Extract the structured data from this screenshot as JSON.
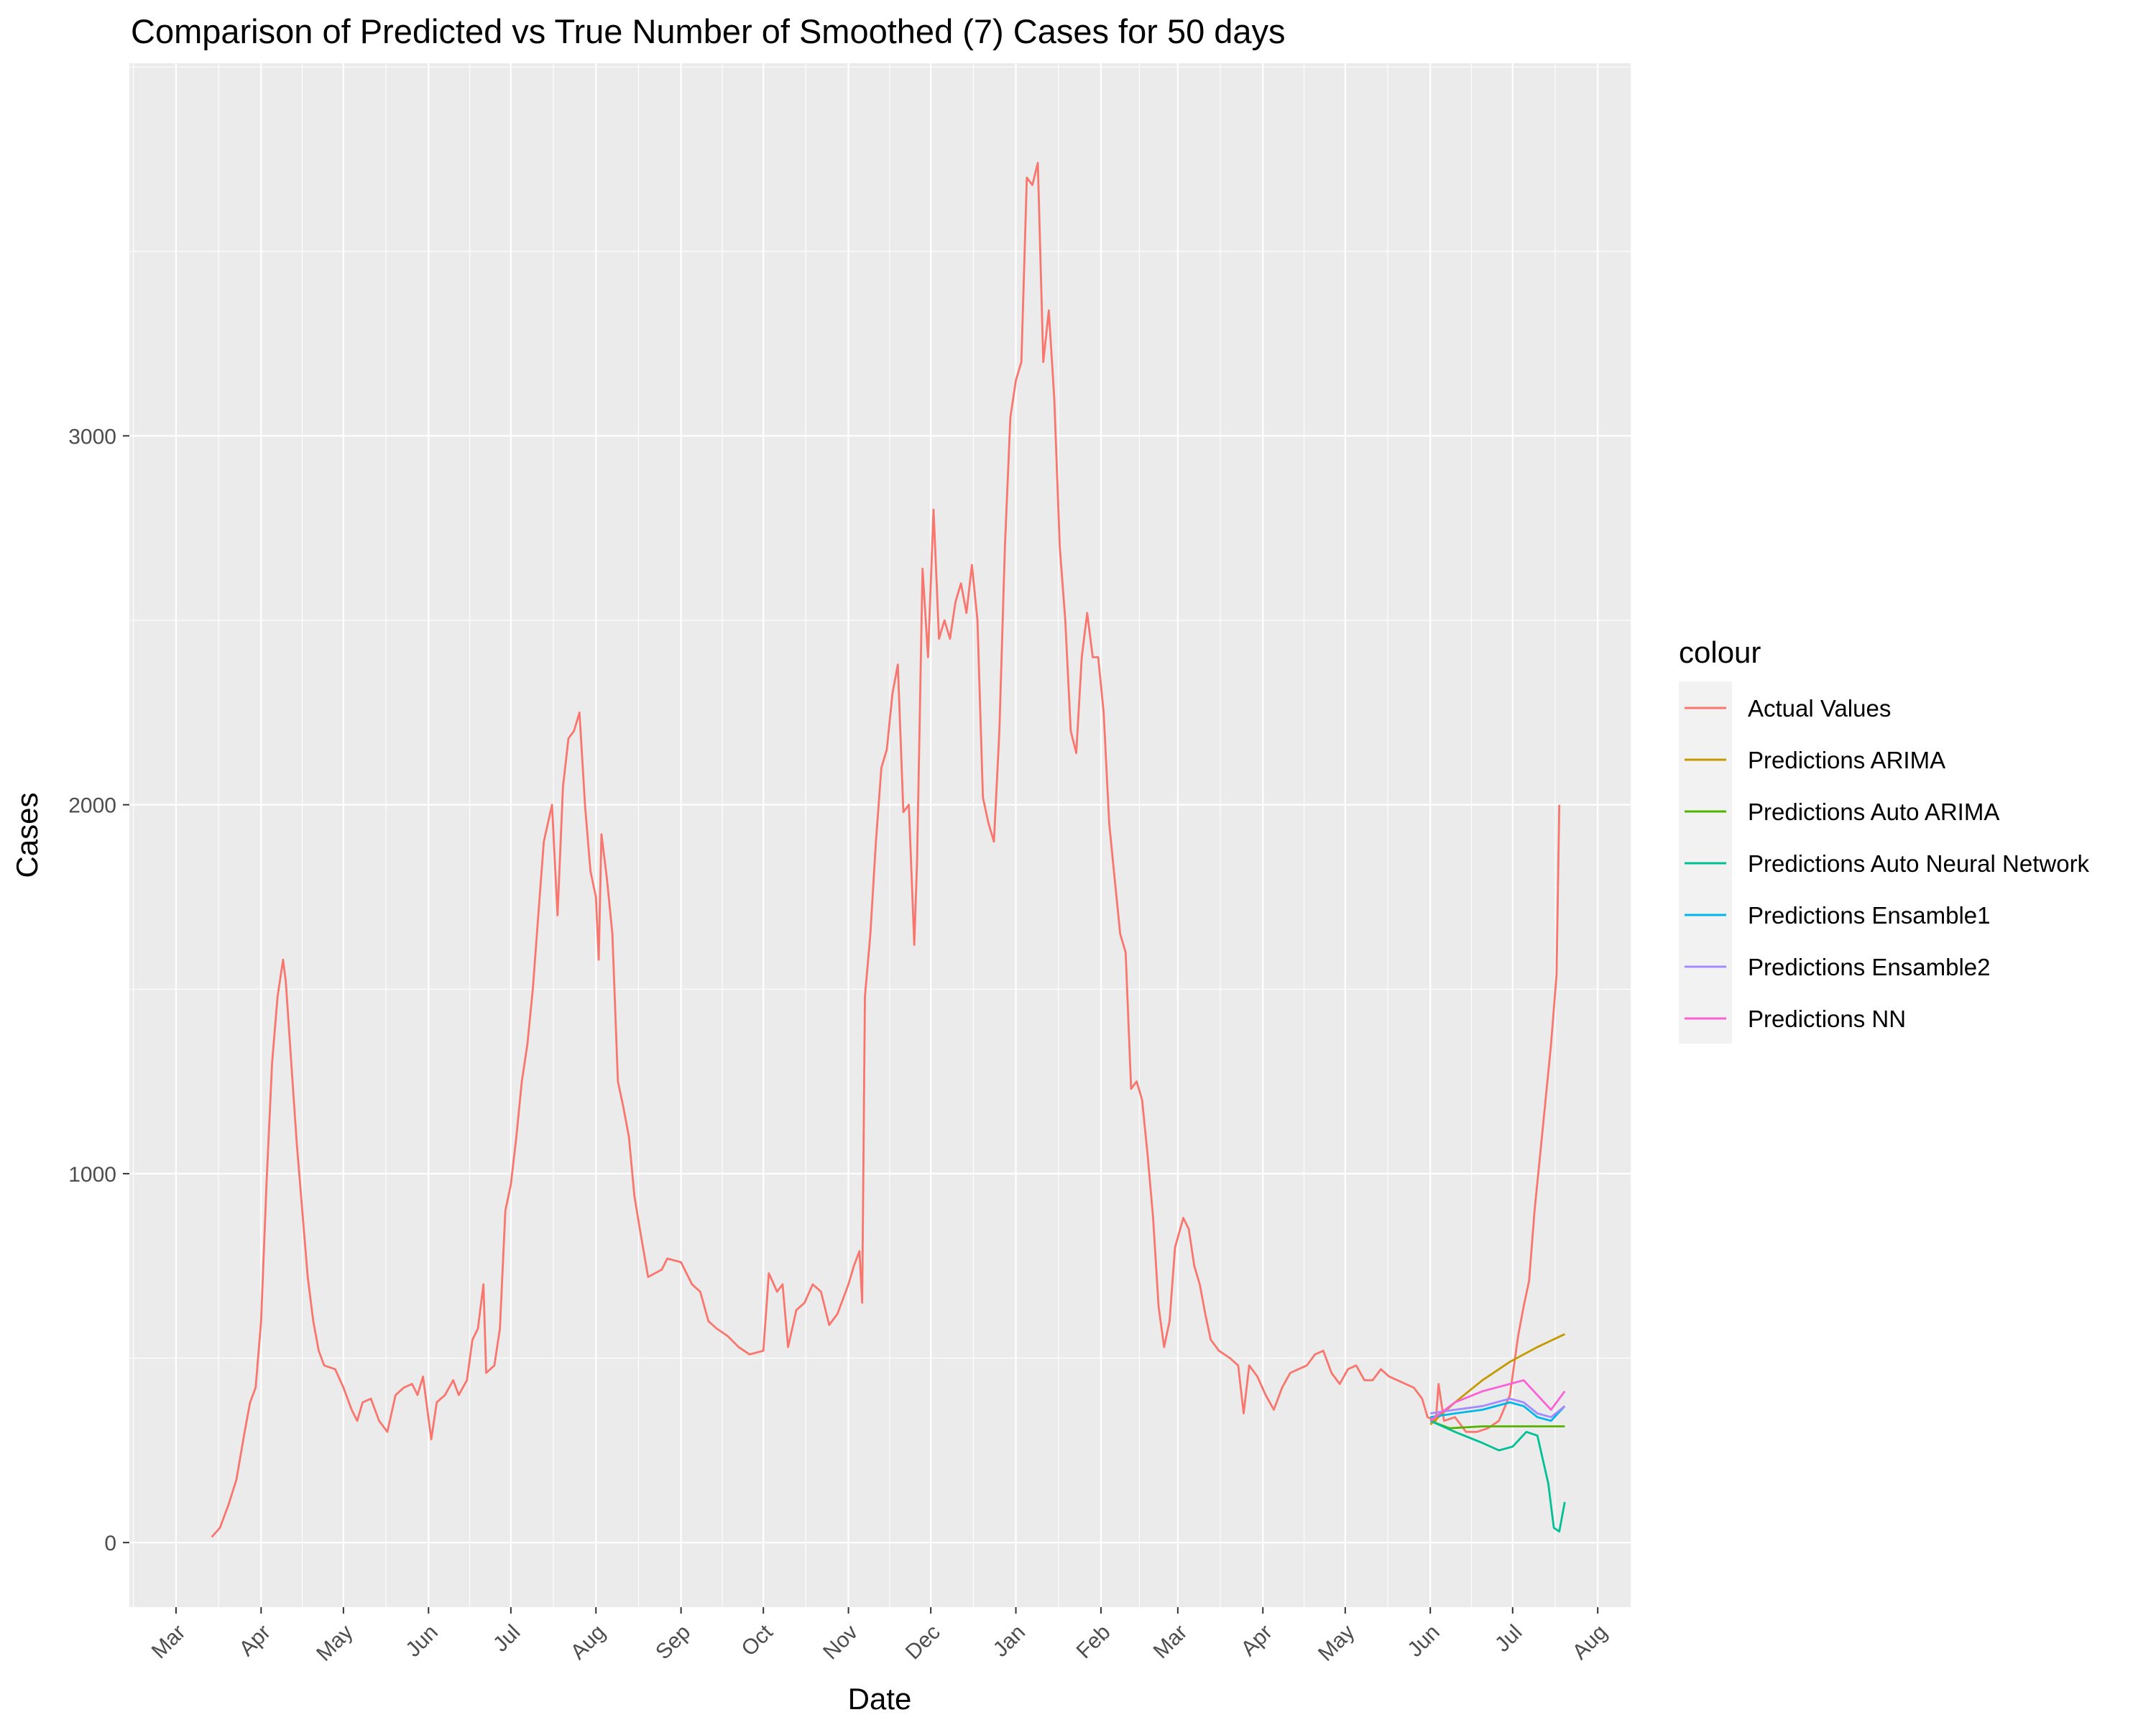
{
  "chart_data": {
    "type": "line",
    "title": "Comparison of Predicted vs True Number of Smoothed (7) Cases for 50 days",
    "xlabel": "Date",
    "ylabel": "Cases",
    "x_type": "date",
    "xlim": [
      "2020-02-13",
      "2021-08-13"
    ],
    "ylim": [
      -175,
      4010
    ],
    "x_ticks": [
      {
        "date": "2020-03-01",
        "label": "Mar"
      },
      {
        "date": "2020-04-01",
        "label": "Apr"
      },
      {
        "date": "2020-05-01",
        "label": "May"
      },
      {
        "date": "2020-06-01",
        "label": "Jun"
      },
      {
        "date": "2020-07-01",
        "label": "Jul"
      },
      {
        "date": "2020-08-01",
        "label": "Aug"
      },
      {
        "date": "2020-09-01",
        "label": "Sep"
      },
      {
        "date": "2020-10-01",
        "label": "Oct"
      },
      {
        "date": "2020-11-01",
        "label": "Nov"
      },
      {
        "date": "2020-12-01",
        "label": "Dec"
      },
      {
        "date": "2021-01-01",
        "label": "Jan"
      },
      {
        "date": "2021-02-01",
        "label": "Feb"
      },
      {
        "date": "2021-03-01",
        "label": "Mar"
      },
      {
        "date": "2021-04-01",
        "label": "Apr"
      },
      {
        "date": "2021-05-01",
        "label": "May"
      },
      {
        "date": "2021-06-01",
        "label": "Jun"
      },
      {
        "date": "2021-07-01",
        "label": "Jul"
      },
      {
        "date": "2021-08-01",
        "label": "Aug"
      }
    ],
    "y_ticks": [
      0,
      1000,
      2000,
      3000
    ],
    "grid": true,
    "legend": {
      "title": "colour",
      "position": "right"
    },
    "series": [
      {
        "name": "Actual Values",
        "color": "#F8766D",
        "points": [
          [
            "2020-03-14",
            15
          ],
          [
            "2020-03-17",
            40
          ],
          [
            "2020-03-20",
            100
          ],
          [
            "2020-03-23",
            170
          ],
          [
            "2020-03-26",
            300
          ],
          [
            "2020-03-28",
            380
          ],
          [
            "2020-03-30",
            420
          ],
          [
            "2020-04-01",
            600
          ],
          [
            "2020-04-03",
            980
          ],
          [
            "2020-04-05",
            1300
          ],
          [
            "2020-04-07",
            1480
          ],
          [
            "2020-04-09",
            1580
          ],
          [
            "2020-04-10",
            1520
          ],
          [
            "2020-04-12",
            1300
          ],
          [
            "2020-04-14",
            1080
          ],
          [
            "2020-04-16",
            900
          ],
          [
            "2020-04-18",
            720
          ],
          [
            "2020-04-20",
            600
          ],
          [
            "2020-04-22",
            520
          ],
          [
            "2020-04-24",
            480
          ],
          [
            "2020-04-28",
            470
          ],
          [
            "2020-05-01",
            420
          ],
          [
            "2020-05-04",
            360
          ],
          [
            "2020-05-06",
            330
          ],
          [
            "2020-05-08",
            380
          ],
          [
            "2020-05-11",
            390
          ],
          [
            "2020-05-14",
            330
          ],
          [
            "2020-05-17",
            300
          ],
          [
            "2020-05-20",
            400
          ],
          [
            "2020-05-23",
            420
          ],
          [
            "2020-05-26",
            430
          ],
          [
            "2020-05-28",
            400
          ],
          [
            "2020-05-30",
            450
          ],
          [
            "2020-06-02",
            280
          ],
          [
            "2020-06-04",
            380
          ],
          [
            "2020-06-07",
            400
          ],
          [
            "2020-06-10",
            440
          ],
          [
            "2020-06-12",
            400
          ],
          [
            "2020-06-15",
            440
          ],
          [
            "2020-06-17",
            550
          ],
          [
            "2020-06-19",
            580
          ],
          [
            "2020-06-21",
            700
          ],
          [
            "2020-06-22",
            460
          ],
          [
            "2020-06-25",
            480
          ],
          [
            "2020-06-27",
            580
          ],
          [
            "2020-06-29",
            900
          ],
          [
            "2020-07-01",
            970
          ],
          [
            "2020-07-03",
            1100
          ],
          [
            "2020-07-05",
            1250
          ],
          [
            "2020-07-07",
            1350
          ],
          [
            "2020-07-09",
            1500
          ],
          [
            "2020-07-11",
            1700
          ],
          [
            "2020-07-13",
            1900
          ],
          [
            "2020-07-16",
            2000
          ],
          [
            "2020-07-18",
            1700
          ],
          [
            "2020-07-20",
            2050
          ],
          [
            "2020-07-22",
            2180
          ],
          [
            "2020-07-24",
            2200
          ],
          [
            "2020-07-26",
            2250
          ],
          [
            "2020-07-28",
            2000
          ],
          [
            "2020-07-30",
            1820
          ],
          [
            "2020-08-01",
            1750
          ],
          [
            "2020-08-02",
            1580
          ],
          [
            "2020-08-03",
            1920
          ],
          [
            "2020-08-05",
            1800
          ],
          [
            "2020-08-07",
            1650
          ],
          [
            "2020-08-09",
            1250
          ],
          [
            "2020-08-11",
            1180
          ],
          [
            "2020-08-13",
            1100
          ],
          [
            "2020-08-15",
            940
          ],
          [
            "2020-08-17",
            850
          ],
          [
            "2020-08-20",
            720
          ],
          [
            "2020-08-25",
            740
          ],
          [
            "2020-08-27",
            770
          ],
          [
            "2020-09-01",
            760
          ],
          [
            "2020-09-05",
            700
          ],
          [
            "2020-09-08",
            680
          ],
          [
            "2020-09-11",
            600
          ],
          [
            "2020-09-14",
            580
          ],
          [
            "2020-09-18",
            560
          ],
          [
            "2020-09-22",
            530
          ],
          [
            "2020-09-26",
            510
          ],
          [
            "2020-10-01",
            520
          ],
          [
            "2020-10-03",
            730
          ],
          [
            "2020-10-06",
            680
          ],
          [
            "2020-10-08",
            700
          ],
          [
            "2020-10-10",
            530
          ],
          [
            "2020-10-13",
            630
          ],
          [
            "2020-10-16",
            650
          ],
          [
            "2020-10-19",
            700
          ],
          [
            "2020-10-22",
            680
          ],
          [
            "2020-10-25",
            590
          ],
          [
            "2020-10-28",
            620
          ],
          [
            "2020-11-01",
            700
          ],
          [
            "2020-11-03",
            750
          ],
          [
            "2020-11-05",
            790
          ],
          [
            "2020-11-06",
            650
          ],
          [
            "2020-11-07",
            1480
          ],
          [
            "2020-11-09",
            1650
          ],
          [
            "2020-11-11",
            1900
          ],
          [
            "2020-11-13",
            2100
          ],
          [
            "2020-11-15",
            2150
          ],
          [
            "2020-11-17",
            2300
          ],
          [
            "2020-11-19",
            2380
          ],
          [
            "2020-11-21",
            1980
          ],
          [
            "2020-11-23",
            2000
          ],
          [
            "2020-11-25",
            1620
          ],
          [
            "2020-11-26",
            1850
          ],
          [
            "2020-11-28",
            2640
          ],
          [
            "2020-11-30",
            2400
          ],
          [
            "2020-12-02",
            2800
          ],
          [
            "2020-12-04",
            2450
          ],
          [
            "2020-12-06",
            2500
          ],
          [
            "2020-12-08",
            2450
          ],
          [
            "2020-12-10",
            2550
          ],
          [
            "2020-12-12",
            2600
          ],
          [
            "2020-12-14",
            2520
          ],
          [
            "2020-12-16",
            2650
          ],
          [
            "2020-12-18",
            2500
          ],
          [
            "2020-12-20",
            2020
          ],
          [
            "2020-12-22",
            1950
          ],
          [
            "2020-12-24",
            1900
          ],
          [
            "2020-12-26",
            2200
          ],
          [
            "2020-12-28",
            2700
          ],
          [
            "2020-12-30",
            3050
          ],
          [
            "2021-01-01",
            3150
          ],
          [
            "2021-01-03",
            3200
          ],
          [
            "2021-01-05",
            3700
          ],
          [
            "2021-01-07",
            3680
          ],
          [
            "2021-01-09",
            3740
          ],
          [
            "2021-01-11",
            3200
          ],
          [
            "2021-01-13",
            3340
          ],
          [
            "2021-01-15",
            3100
          ],
          [
            "2021-01-17",
            2700
          ],
          [
            "2021-01-19",
            2500
          ],
          [
            "2021-01-21",
            2200
          ],
          [
            "2021-01-23",
            2140
          ],
          [
            "2021-01-25",
            2400
          ],
          [
            "2021-01-27",
            2520
          ],
          [
            "2021-01-29",
            2400
          ],
          [
            "2021-01-31",
            2400
          ],
          [
            "2021-02-02",
            2250
          ],
          [
            "2021-02-04",
            1950
          ],
          [
            "2021-02-06",
            1800
          ],
          [
            "2021-02-08",
            1650
          ],
          [
            "2021-02-10",
            1600
          ],
          [
            "2021-02-12",
            1230
          ],
          [
            "2021-02-14",
            1250
          ],
          [
            "2021-02-16",
            1200
          ],
          [
            "2021-02-18",
            1050
          ],
          [
            "2021-02-20",
            880
          ],
          [
            "2021-02-22",
            640
          ],
          [
            "2021-02-24",
            530
          ],
          [
            "2021-02-26",
            600
          ],
          [
            "2021-02-28",
            800
          ],
          [
            "2021-03-03",
            880
          ],
          [
            "2021-03-05",
            850
          ],
          [
            "2021-03-07",
            750
          ],
          [
            "2021-03-09",
            700
          ],
          [
            "2021-03-11",
            620
          ],
          [
            "2021-03-13",
            550
          ],
          [
            "2021-03-16",
            520
          ],
          [
            "2021-03-20",
            500
          ],
          [
            "2021-03-23",
            480
          ],
          [
            "2021-03-25",
            350
          ],
          [
            "2021-03-27",
            480
          ],
          [
            "2021-03-30",
            450
          ],
          [
            "2021-04-02",
            400
          ],
          [
            "2021-04-05",
            360
          ],
          [
            "2021-04-08",
            420
          ],
          [
            "2021-04-11",
            460
          ],
          [
            "2021-04-14",
            470
          ],
          [
            "2021-04-17",
            480
          ],
          [
            "2021-04-20",
            510
          ],
          [
            "2021-04-23",
            520
          ],
          [
            "2021-04-26",
            460
          ],
          [
            "2021-04-29",
            430
          ],
          [
            "2021-05-02",
            470
          ],
          [
            "2021-05-05",
            480
          ],
          [
            "2021-05-08",
            440
          ],
          [
            "2021-05-11",
            440
          ],
          [
            "2021-05-14",
            470
          ],
          [
            "2021-05-17",
            450
          ],
          [
            "2021-05-20",
            440
          ],
          [
            "2021-05-23",
            430
          ],
          [
            "2021-05-26",
            420
          ],
          [
            "2021-05-29",
            390
          ],
          [
            "2021-05-31",
            340
          ],
          [
            "2021-06-03",
            330
          ],
          [
            "2021-06-04",
            430
          ],
          [
            "2021-06-06",
            330
          ],
          [
            "2021-06-10",
            340
          ],
          [
            "2021-06-14",
            300
          ],
          [
            "2021-06-18",
            300
          ],
          [
            "2021-06-22",
            310
          ],
          [
            "2021-06-26",
            330
          ],
          [
            "2021-06-30",
            400
          ],
          [
            "2021-07-03",
            560
          ],
          [
            "2021-07-05",
            640
          ],
          [
            "2021-07-07",
            710
          ],
          [
            "2021-07-09",
            900
          ],
          [
            "2021-07-11",
            1050
          ],
          [
            "2021-07-13",
            1200
          ],
          [
            "2021-07-15",
            1350
          ],
          [
            "2021-07-17",
            1540
          ],
          [
            "2021-07-18",
            2000
          ]
        ]
      },
      {
        "name": "Predictions ARIMA",
        "color": "#C49A00",
        "points": [
          [
            "2021-06-01",
            320
          ],
          [
            "2021-06-10",
            380
          ],
          [
            "2021-06-20",
            440
          ],
          [
            "2021-06-30",
            490
          ],
          [
            "2021-07-10",
            530
          ],
          [
            "2021-07-20",
            565
          ]
        ]
      },
      {
        "name": "Predictions Auto ARIMA",
        "color": "#53B400",
        "points": [
          [
            "2021-06-01",
            330
          ],
          [
            "2021-06-08",
            310
          ],
          [
            "2021-06-20",
            315
          ],
          [
            "2021-07-20",
            315
          ]
        ]
      },
      {
        "name": "Predictions Auto Neural Network",
        "color": "#00C094",
        "points": [
          [
            "2021-06-01",
            330
          ],
          [
            "2021-06-10",
            300
          ],
          [
            "2021-06-20",
            270
          ],
          [
            "2021-06-26",
            250
          ],
          [
            "2021-07-01",
            260
          ],
          [
            "2021-07-06",
            300
          ],
          [
            "2021-07-10",
            290
          ],
          [
            "2021-07-14",
            160
          ],
          [
            "2021-07-16",
            40
          ],
          [
            "2021-07-18",
            30
          ],
          [
            "2021-07-20",
            110
          ]
        ]
      },
      {
        "name": "Predictions Ensamble1",
        "color": "#00B6EB",
        "points": [
          [
            "2021-06-01",
            340
          ],
          [
            "2021-06-10",
            350
          ],
          [
            "2021-06-20",
            360
          ],
          [
            "2021-06-30",
            380
          ],
          [
            "2021-07-05",
            370
          ],
          [
            "2021-07-10",
            340
          ],
          [
            "2021-07-15",
            330
          ],
          [
            "2021-07-20",
            370
          ]
        ]
      },
      {
        "name": "Predictions Ensamble2",
        "color": "#A58AFF",
        "points": [
          [
            "2021-06-01",
            350
          ],
          [
            "2021-06-10",
            360
          ],
          [
            "2021-06-20",
            370
          ],
          [
            "2021-06-30",
            390
          ],
          [
            "2021-07-05",
            380
          ],
          [
            "2021-07-10",
            350
          ],
          [
            "2021-07-15",
            340
          ],
          [
            "2021-07-20",
            370
          ]
        ]
      },
      {
        "name": "Predictions NN",
        "color": "#FB61D7",
        "points": [
          [
            "2021-06-01",
            330
          ],
          [
            "2021-06-10",
            380
          ],
          [
            "2021-06-20",
            410
          ],
          [
            "2021-06-30",
            430
          ],
          [
            "2021-07-05",
            440
          ],
          [
            "2021-07-10",
            400
          ],
          [
            "2021-07-15",
            360
          ],
          [
            "2021-07-20",
            410
          ]
        ]
      }
    ]
  }
}
